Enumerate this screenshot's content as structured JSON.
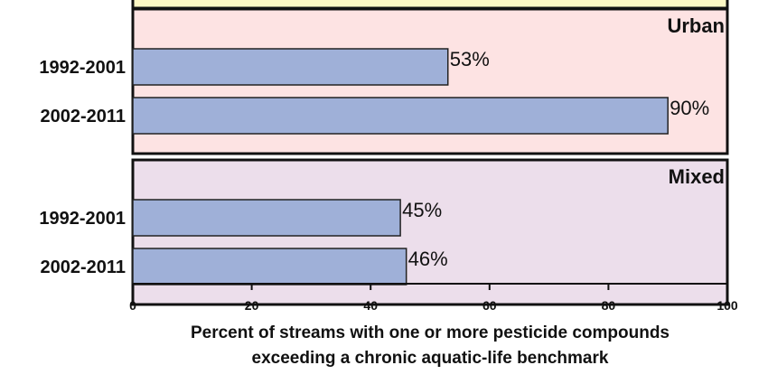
{
  "chart_data": {
    "type": "bar",
    "orientation": "horizontal",
    "xlabel": [
      "Percent of streams with one or more pesticide compounds",
      "exceeding a chronic aquatic-life benchmark"
    ],
    "xlim": [
      0,
      100
    ],
    "xticks": [
      0,
      20,
      40,
      60,
      80,
      100
    ],
    "panels": [
      {
        "title": "Urban",
        "color": "#fde3e3",
        "categories": [
          "1992-2001",
          "2002-2011"
        ],
        "values": [
          53,
          90
        ],
        "labels": [
          "53%",
          "90%"
        ]
      },
      {
        "title": "Mixed",
        "color": "#ecdeeb",
        "categories": [
          "1992-2001",
          "2002-2011"
        ],
        "values": [
          45,
          46
        ],
        "labels": [
          "45%",
          "46%"
        ]
      }
    ],
    "top_panel_color": "#fdf8c4",
    "bar_color": "#9fb0d8"
  }
}
